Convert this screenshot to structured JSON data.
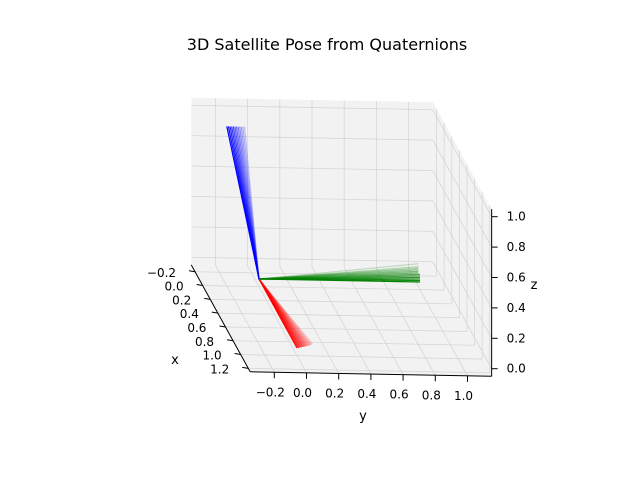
{
  "chart_data": {
    "type": "line",
    "projection": "3d",
    "title": "3D Satellite Pose from Quaternions",
    "xlabel": "x",
    "ylabel": "y",
    "zlabel": "z",
    "x_ticks": [
      "−0.2",
      "0.0",
      "0.2",
      "0.4",
      "0.6",
      "0.8",
      "1.0",
      "1.2"
    ],
    "y_ticks": [
      "−0.2",
      "0.0",
      "0.2",
      "0.4",
      "0.6",
      "0.8",
      "1.0"
    ],
    "z_ticks": [
      "0.0",
      "0.2",
      "0.4",
      "0.6",
      "0.8",
      "1.0"
    ],
    "xlim": [
      -0.3,
      1.25
    ],
    "ylim": [
      -0.35,
      1.15
    ],
    "zlim": [
      -0.05,
      1.05
    ],
    "grid": true,
    "pane_color": "#f2f2f2",
    "origin": [
      0,
      0,
      0
    ],
    "series": [
      {
        "color": "#ff0000",
        "vectors": [
          [
            1.0,
            0.0,
            0.0
          ],
          [
            1.0,
            0.01,
            0.0
          ],
          [
            0.99,
            0.02,
            0.0
          ],
          [
            0.99,
            0.03,
            0.0
          ],
          [
            0.98,
            0.04,
            0.0
          ],
          [
            0.98,
            0.05,
            0.0
          ],
          [
            0.97,
            0.06,
            0.0
          ],
          [
            0.97,
            0.07,
            0.0
          ],
          [
            0.96,
            0.08,
            0.0
          ],
          [
            0.96,
            0.09,
            0.0
          ],
          [
            0.95,
            0.1,
            0.0
          ],
          [
            0.94,
            0.11,
            0.0
          ]
        ]
      },
      {
        "color": "#008000",
        "vectors": [
          [
            0.0,
            1.0,
            0.0
          ],
          [
            0.0,
            1.0,
            0.01
          ],
          [
            0.0,
            1.0,
            0.02
          ],
          [
            0.0,
            1.0,
            0.03
          ],
          [
            0.0,
            1.0,
            0.04
          ],
          [
            0.0,
            1.0,
            0.05
          ],
          [
            0.0,
            0.99,
            0.06
          ],
          [
            0.0,
            0.99,
            0.07
          ],
          [
            0.0,
            0.99,
            0.08
          ],
          [
            0.0,
            0.99,
            0.09
          ],
          [
            0.0,
            0.99,
            0.1
          ],
          [
            0.0,
            0.99,
            0.12
          ]
        ]
      },
      {
        "color": "#0000ff",
        "vectors": [
          [
            0.0,
            -0.2,
            1.0
          ],
          [
            0.0,
            -0.19,
            1.0
          ],
          [
            0.0,
            -0.18,
            1.0
          ],
          [
            0.0,
            -0.17,
            1.0
          ],
          [
            0.0,
            -0.16,
            1.0
          ],
          [
            0.0,
            -0.15,
            1.0
          ],
          [
            0.0,
            -0.14,
            1.0
          ],
          [
            0.0,
            -0.13,
            1.0
          ],
          [
            0.0,
            -0.12,
            1.0
          ],
          [
            0.0,
            -0.11,
            1.0
          ],
          [
            0.0,
            -0.1,
            1.0
          ],
          [
            0.0,
            -0.09,
            1.0
          ]
        ]
      }
    ]
  }
}
